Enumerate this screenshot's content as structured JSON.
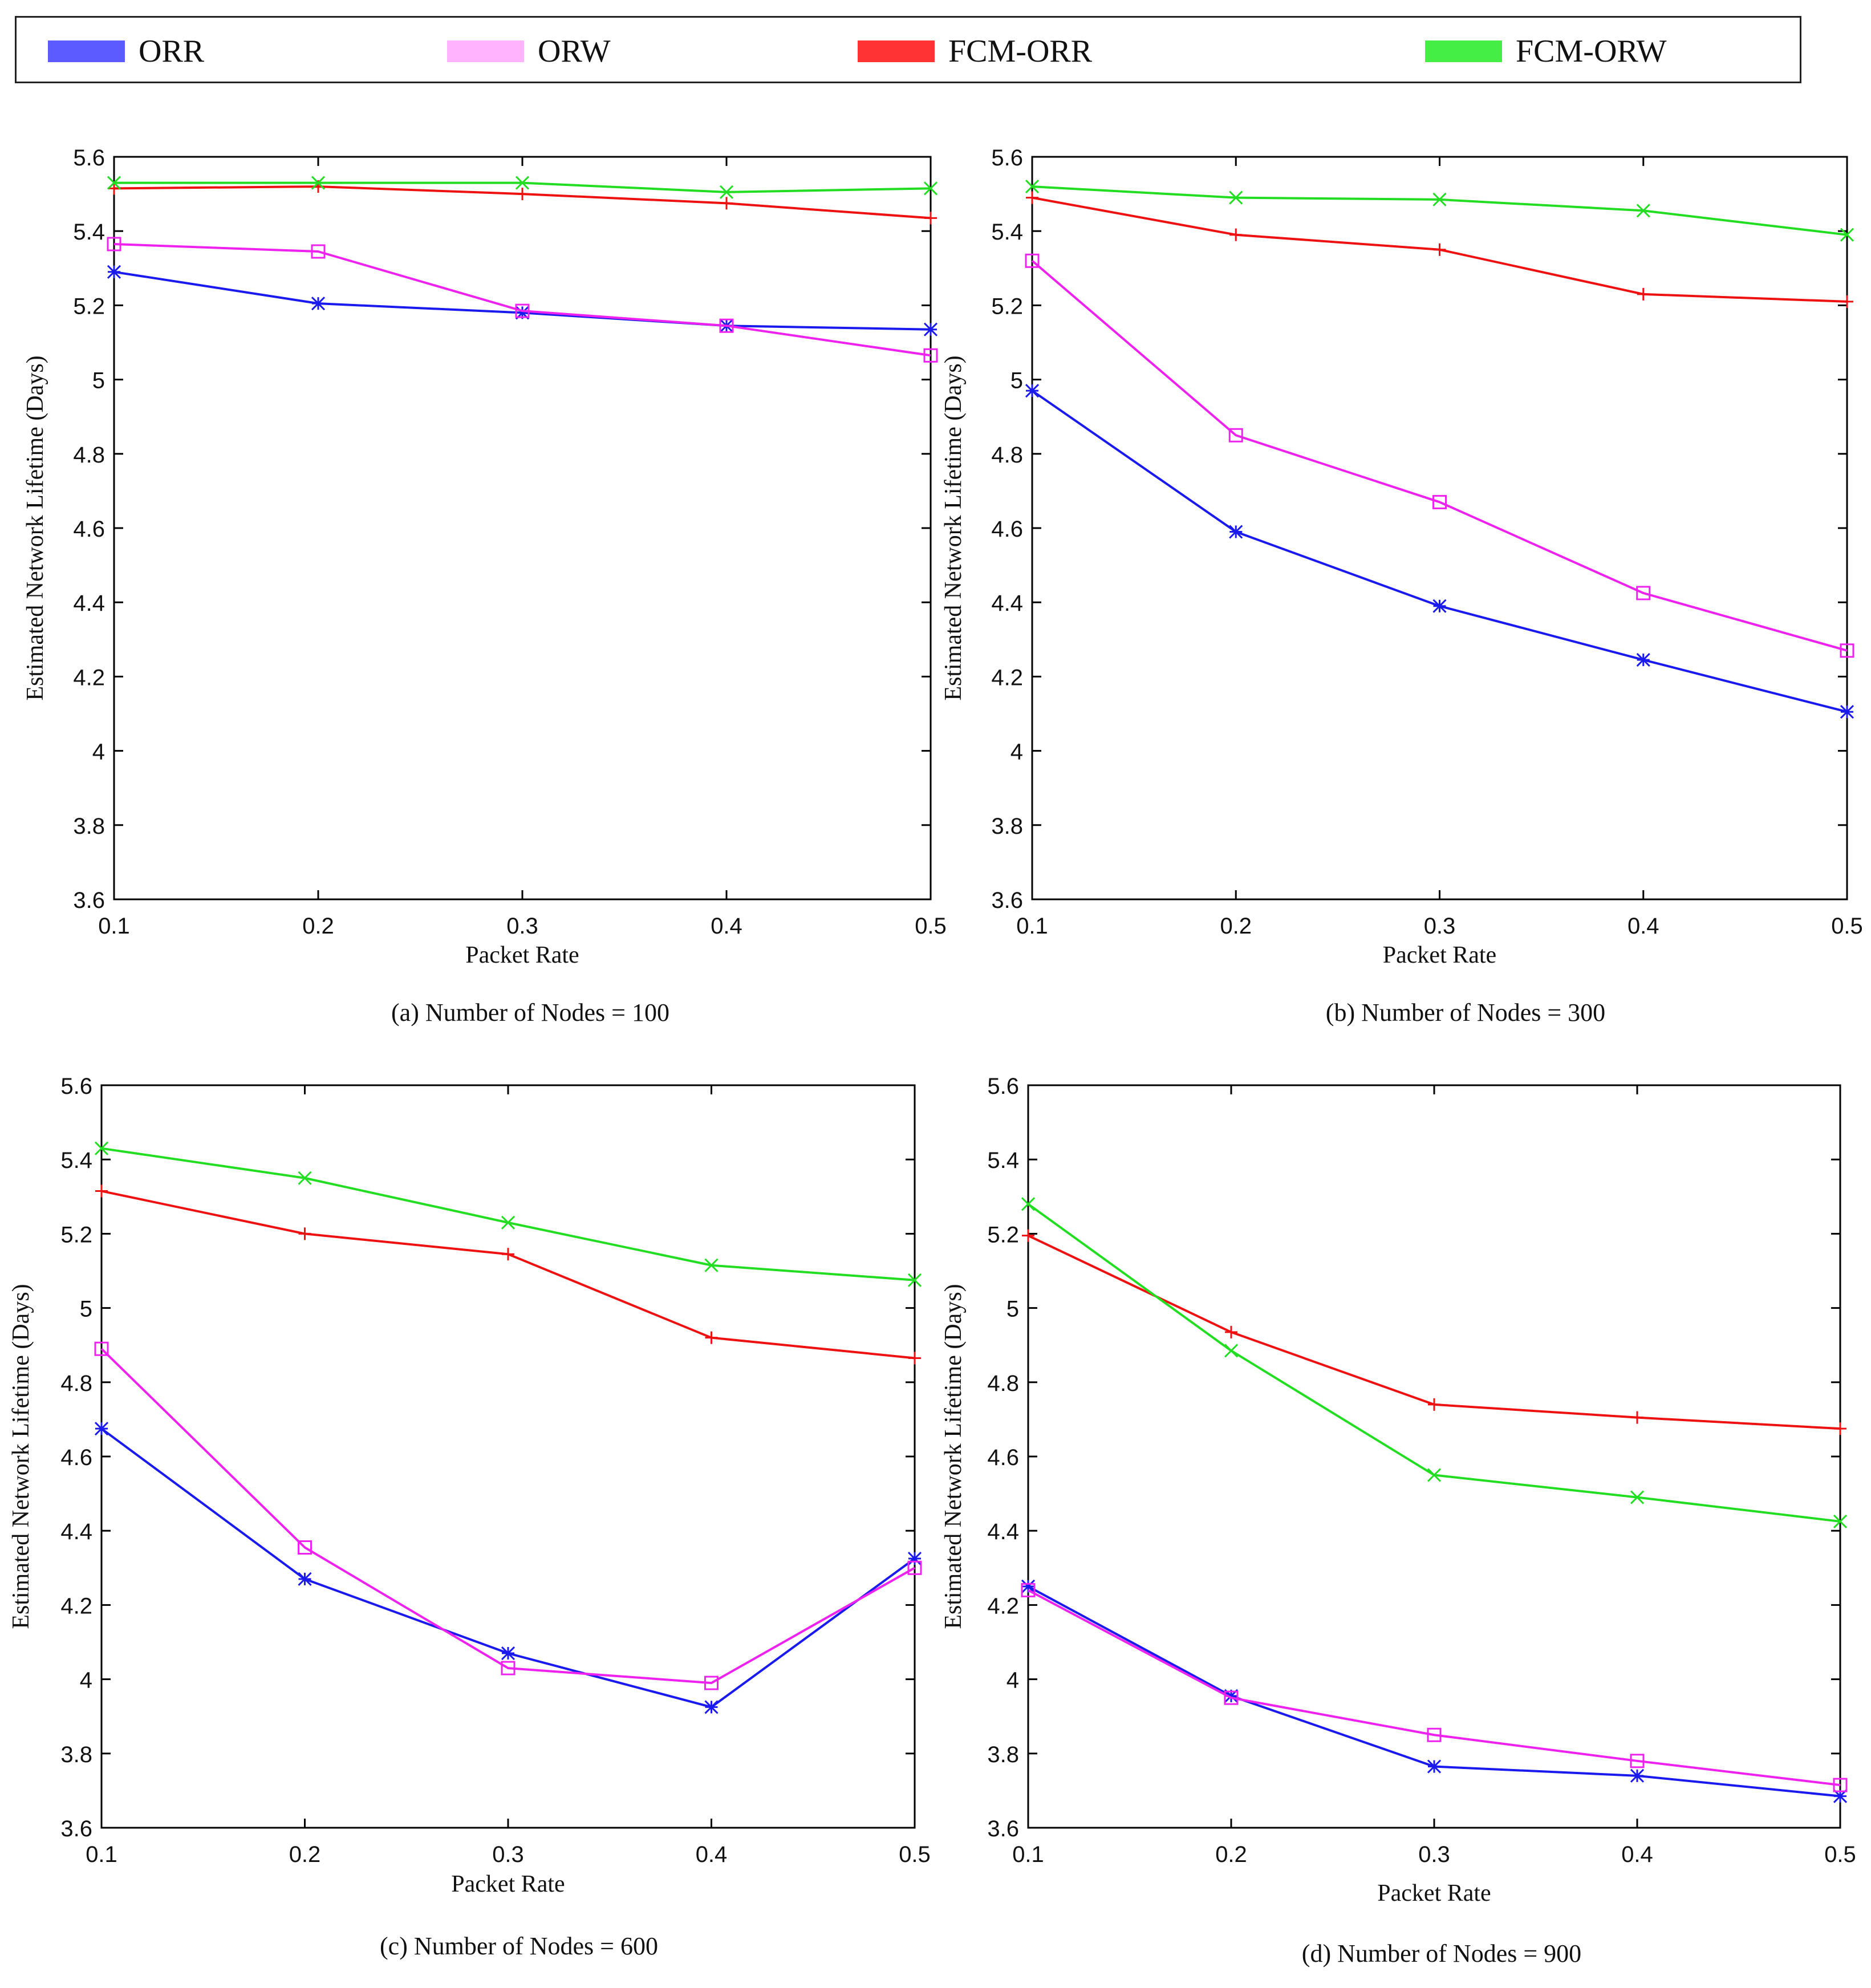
{
  "legend": [
    {
      "label": "ORR",
      "color": "#5b5bff"
    },
    {
      "label": "ORW",
      "color": "#ffb3ff"
    },
    {
      "label": "FCM-ORR",
      "color": "#ff3333"
    },
    {
      "label": "FCM-ORW",
      "color": "#44ee44"
    }
  ],
  "series_styles": [
    {
      "name": "ORR",
      "color": "#1a1aee",
      "marker": "asterisk"
    },
    {
      "name": "ORW",
      "color": "#ee22ee",
      "marker": "square"
    },
    {
      "name": "FCM-ORR",
      "color": "#ee1111",
      "marker": "plus"
    },
    {
      "name": "FCM-ORW",
      "color": "#22dd22",
      "marker": "cross"
    }
  ],
  "chart_data": [
    {
      "type": "line",
      "title": "(a) Number of Nodes = 100",
      "xlabel": "Packet Rate",
      "ylabel": "Estimated Network Lifetime (Days)",
      "x": [
        0.1,
        0.2,
        0.3,
        0.4,
        0.5
      ],
      "xticks": [
        "0.1",
        "0.2",
        "0.3",
        "0.4",
        "0.5"
      ],
      "ylim": [
        3.6,
        5.6
      ],
      "yticks": [
        "3.6",
        "3.8",
        "4",
        "4.2",
        "4.4",
        "4.6",
        "4.8",
        "5",
        "5.2",
        "5.4",
        "5.6"
      ],
      "series": [
        {
          "name": "ORR",
          "values": [
            5.29,
            5.205,
            5.18,
            5.145,
            5.135
          ]
        },
        {
          "name": "ORW",
          "values": [
            5.365,
            5.345,
            5.185,
            5.145,
            5.065
          ]
        },
        {
          "name": "FCM-ORR",
          "values": [
            5.515,
            5.52,
            5.5,
            5.475,
            5.435
          ]
        },
        {
          "name": "FCM-ORW",
          "values": [
            5.53,
            5.53,
            5.53,
            5.505,
            5.515
          ]
        }
      ]
    },
    {
      "type": "line",
      "title": "(b) Number of Nodes = 300",
      "xlabel": "Packet Rate",
      "ylabel": "Estimated Network Lifetime (Days)",
      "x": [
        0.1,
        0.2,
        0.3,
        0.4,
        0.5
      ],
      "xticks": [
        "0.1",
        "0.2",
        "0.3",
        "0.4",
        "0.5"
      ],
      "ylim": [
        3.6,
        5.6
      ],
      "yticks": [
        "3.6",
        "3.8",
        "4",
        "4.2",
        "4.4",
        "4.6",
        "4.8",
        "5",
        "5.2",
        "5.4",
        "5.6"
      ],
      "series": [
        {
          "name": "ORR",
          "values": [
            4.97,
            4.59,
            4.39,
            4.245,
            4.105
          ]
        },
        {
          "name": "ORW",
          "values": [
            5.32,
            4.85,
            4.67,
            4.425,
            4.27
          ]
        },
        {
          "name": "FCM-ORR",
          "values": [
            5.49,
            5.39,
            5.35,
            5.23,
            5.21
          ]
        },
        {
          "name": "FCM-ORW",
          "values": [
            5.52,
            5.49,
            5.485,
            5.455,
            5.39
          ]
        }
      ]
    },
    {
      "type": "line",
      "title": "(c) Number of Nodes = 600",
      "xlabel": "Packet Rate",
      "ylabel": "Estimated Network Lifetime (Days)",
      "x": [
        0.1,
        0.2,
        0.3,
        0.4,
        0.5
      ],
      "xticks": [
        "0.1",
        "0.2",
        "0.3",
        "0.4",
        "0.5"
      ],
      "ylim": [
        3.6,
        5.6
      ],
      "yticks": [
        "3.6",
        "3.8",
        "4",
        "4.2",
        "4.4",
        "4.6",
        "4.8",
        "5",
        "5.2",
        "5.4",
        "5.6"
      ],
      "series": [
        {
          "name": "ORR",
          "values": [
            4.675,
            4.27,
            4.07,
            3.925,
            4.325
          ]
        },
        {
          "name": "ORW",
          "values": [
            4.89,
            4.355,
            4.03,
            3.99,
            4.3
          ]
        },
        {
          "name": "FCM-ORR",
          "values": [
            5.315,
            5.2,
            5.145,
            4.92,
            4.865
          ]
        },
        {
          "name": "FCM-ORW",
          "values": [
            5.43,
            5.35,
            5.23,
            5.115,
            5.075
          ]
        }
      ]
    },
    {
      "type": "line",
      "title": "(d) Number of Nodes = 900",
      "xlabel": "Packet Rate",
      "ylabel": "Estimated Network Lifetime (Days)",
      "x": [
        0.1,
        0.2,
        0.3,
        0.4,
        0.5
      ],
      "xticks": [
        "0.1",
        "0.2",
        "0.3",
        "0.4",
        "0.5"
      ],
      "ylim": [
        3.6,
        5.6
      ],
      "yticks": [
        "3.6",
        "3.8",
        "4",
        "4.2",
        "4.4",
        "4.6",
        "4.8",
        "5",
        "5.2",
        "5.4",
        "5.6"
      ],
      "series": [
        {
          "name": "ORR",
          "values": [
            4.25,
            3.955,
            3.765,
            3.74,
            3.685
          ]
        },
        {
          "name": "ORW",
          "values": [
            4.24,
            3.95,
            3.85,
            3.78,
            3.715
          ]
        },
        {
          "name": "FCM-ORR",
          "values": [
            5.195,
            4.935,
            4.74,
            4.705,
            4.675
          ]
        },
        {
          "name": "FCM-ORW",
          "values": [
            5.28,
            4.885,
            4.55,
            4.49,
            4.425
          ]
        }
      ]
    }
  ]
}
